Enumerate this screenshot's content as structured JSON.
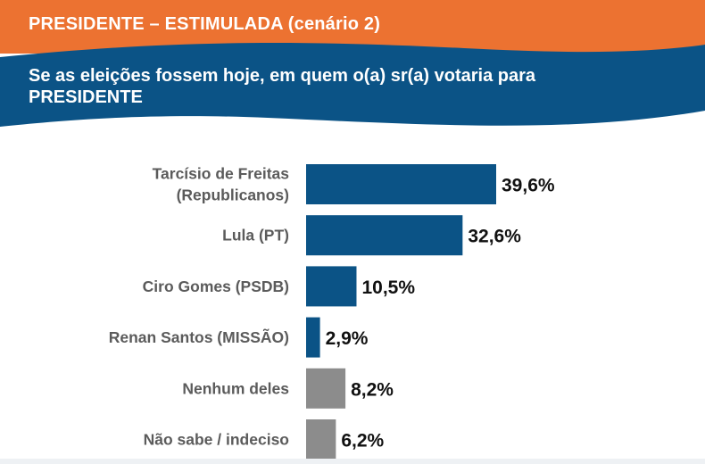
{
  "header": {
    "title": "PRESIDENTE – ESTIMULADA (cenário 2)",
    "question_line1": "Se as eleições fossem hoje, em quem o(a) sr(a) votaria para",
    "question_line2": "PRESIDENTE"
  },
  "colors": {
    "orange_band": "#ec7231",
    "blue_band": "#0b5386",
    "bar_candidate": "#0b5386",
    "bar_other": "#8c8c8c"
  },
  "chart_data": {
    "type": "bar",
    "orientation": "horizontal",
    "categories": [
      [
        "Tarcísio de Freitas",
        "(Republicanos)"
      ],
      [
        "Lula (PT)"
      ],
      [
        "Ciro Gomes (PSDB)"
      ],
      [
        "Renan Santos (MISSÃO)"
      ],
      [
        "Nenhum deles"
      ],
      [
        "Não sabe / indeciso"
      ]
    ],
    "values": [
      39.6,
      32.6,
      10.5,
      2.9,
      8.2,
      6.2
    ],
    "value_labels": [
      "39,6%",
      "32,6%",
      "10,5%",
      "2,9%",
      "8,2%",
      "6,2%"
    ],
    "bar_groups": [
      "candidate",
      "candidate",
      "candidate",
      "candidate",
      "other",
      "other"
    ],
    "unit": "%",
    "xlim": [
      0,
      100
    ],
    "grid": false,
    "legend": "none"
  }
}
